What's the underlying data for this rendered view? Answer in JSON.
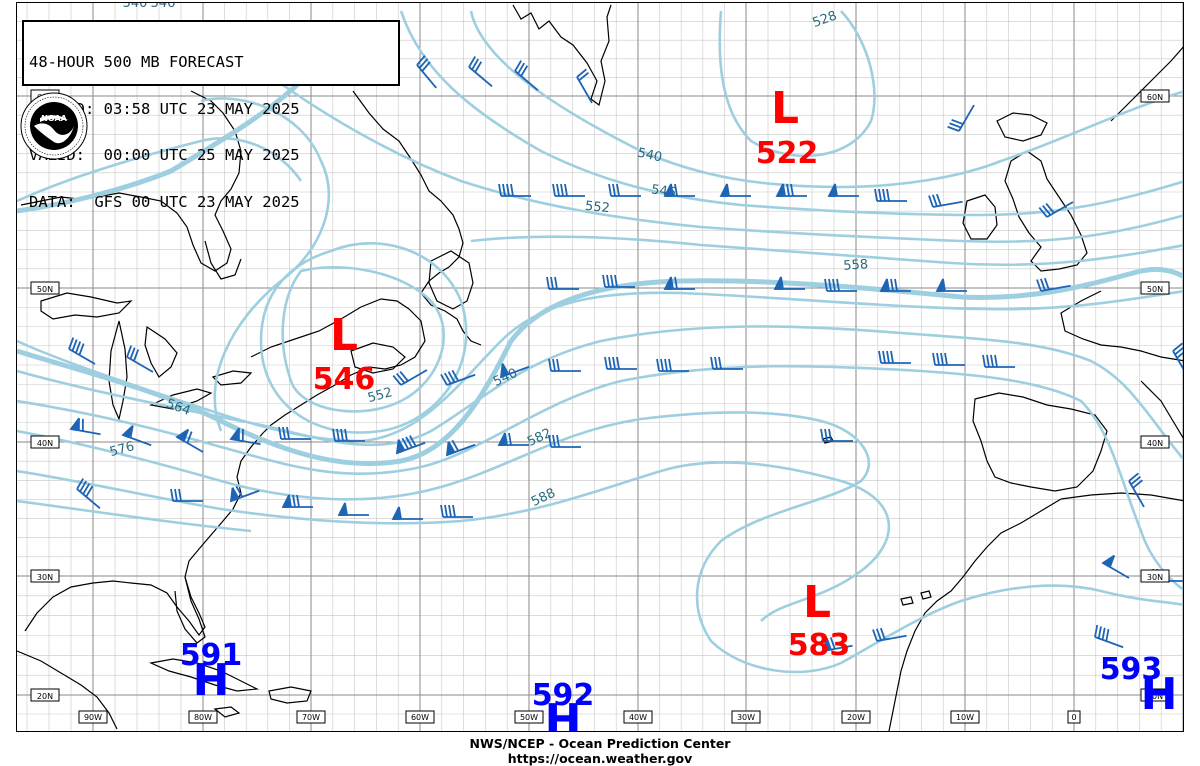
{
  "header": {
    "title": "48-HOUR 500 MB FORECAST",
    "issued": "ISSUED: 03:58 UTC 23 MAY 2025",
    "valid": "VALID:  00:00 UTC 25 MAY 2025",
    "data_line": "DATA:  GFS 00 UTC 23 MAY 2025"
  },
  "logo": {
    "text": "NOAA",
    "icon": "noaa-logo"
  },
  "lat_labels": {
    "left": [
      "60N",
      "50N",
      "40N",
      "30N",
      "20N"
    ],
    "right": [
      "60N",
      "50N",
      "40N",
      "30N",
      "20N"
    ]
  },
  "lon_labels": [
    "90W",
    "80W",
    "70W",
    "60W",
    "50W",
    "40W",
    "30W",
    "20W",
    "10W",
    "0"
  ],
  "contour_labels": [
    "540",
    "546",
    "528",
    "552",
    "558",
    "552",
    "540",
    "564",
    "576",
    "582",
    "588",
    "540",
    "546"
  ],
  "centers": [
    {
      "type": "L",
      "value": "522"
    },
    {
      "type": "L",
      "value": "546"
    },
    {
      "type": "L",
      "value": "583"
    },
    {
      "type": "H",
      "value": "591"
    },
    {
      "type": "H",
      "value": "592"
    },
    {
      "type": "H",
      "value": "593"
    }
  ],
  "colors": {
    "low": "#ff0000",
    "high": "#0000ff",
    "contour": "#9ecfe0",
    "contour_label": "#2a6a80",
    "barb": "#1e64b4"
  },
  "footer": {
    "line1": "NWS/NCEP - Ocean Prediction Center",
    "line2": "https://ocean.weather.gov"
  }
}
